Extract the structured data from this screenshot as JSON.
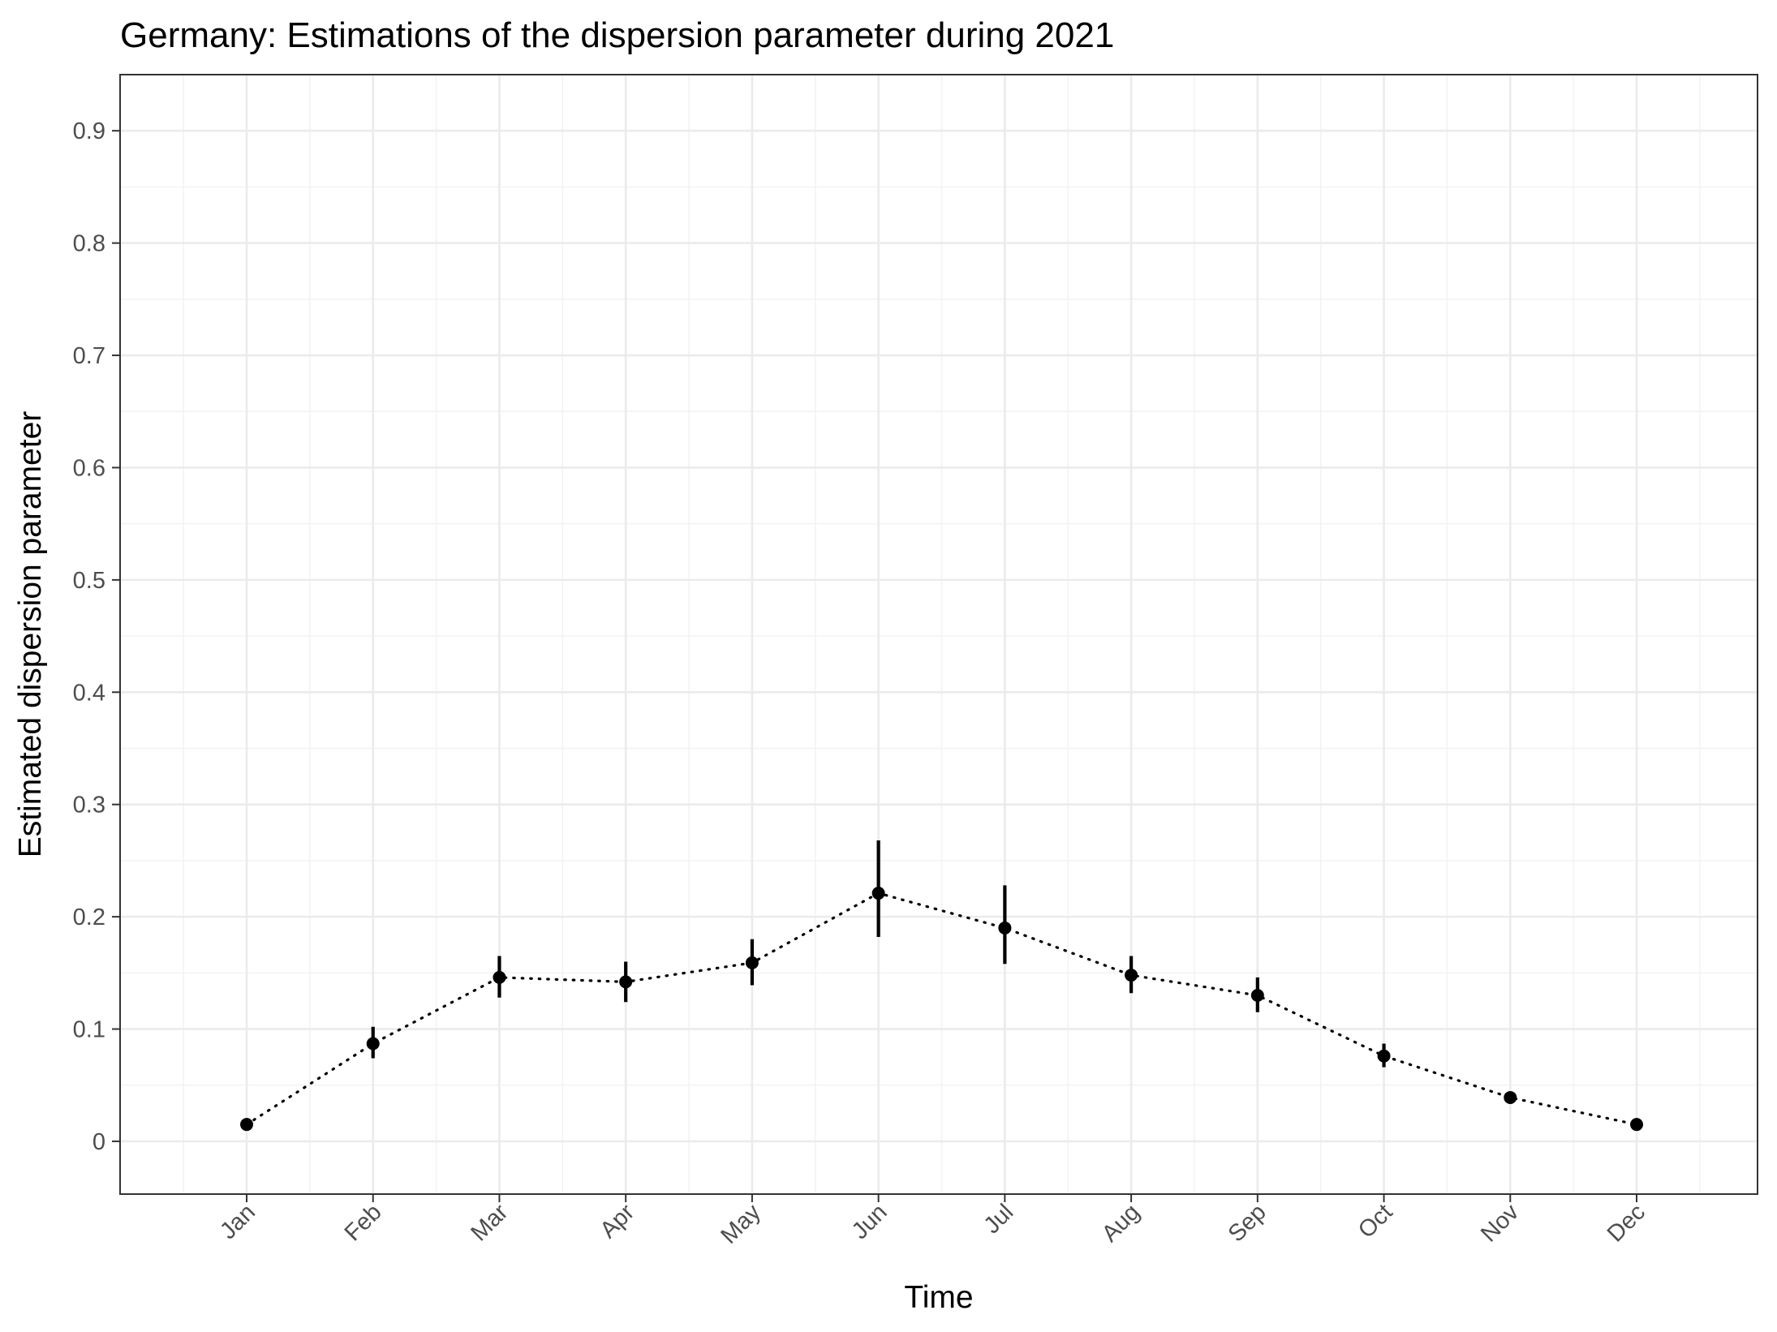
{
  "chart_data": {
    "type": "line",
    "title": "Germany: Estimations of the dispersion parameter during 2021",
    "xlabel": "Time",
    "ylabel": "Estimated dispersion parameter",
    "categories": [
      "Jan",
      "Feb",
      "Mar",
      "Apr",
      "May",
      "Jun",
      "Jul",
      "Aug",
      "Sep",
      "Oct",
      "Nov",
      "Dec"
    ],
    "yticks": [
      "0",
      "0.1",
      "0.2",
      "0.3",
      "0.4",
      "0.5",
      "0.6",
      "0.7",
      "0.8",
      "0.9"
    ],
    "ylim": [
      -0.047,
      0.95
    ],
    "grid": true,
    "series": [
      {
        "values": [
          0.015,
          0.087,
          0.146,
          0.142,
          0.159,
          0.221,
          0.19,
          0.148,
          0.13,
          0.076,
          0.039,
          0.015
        ],
        "lower": [
          0.015,
          0.074,
          0.128,
          0.124,
          0.139,
          0.182,
          0.158,
          0.132,
          0.115,
          0.066,
          0.039,
          0.015
        ],
        "upper": [
          0.015,
          0.102,
          0.165,
          0.16,
          0.18,
          0.268,
          0.228,
          0.165,
          0.146,
          0.087,
          0.039,
          0.015
        ],
        "line_style": "dotted",
        "color": "#000000"
      }
    ]
  }
}
